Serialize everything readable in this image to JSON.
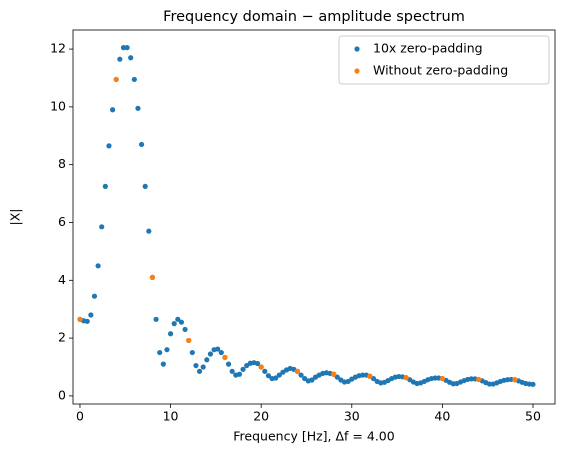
{
  "chart_data": {
    "type": "scatter",
    "title": "Frequency domain − amplitude spectrum",
    "xlabel": "Frequency [Hz], Δf = 4.00",
    "ylabel": "|X|",
    "xlim": [
      -0.77,
      52.43
    ],
    "ylim": [
      -0.28,
      12.66
    ],
    "xticks": [
      0,
      10,
      20,
      30,
      40,
      50
    ],
    "yticks": [
      0,
      2,
      4,
      6,
      8,
      10,
      12
    ],
    "legend": "upper right",
    "series": [
      {
        "name": "10x zero-padding",
        "color": "#1f77b4",
        "x": [
          0,
          0.4,
          0.8,
          1.2,
          1.6,
          2,
          2.4,
          2.8,
          3.2,
          3.6,
          4,
          4.4,
          4.8,
          5.2,
          5.6,
          6,
          6.4,
          6.8,
          7.2,
          7.6,
          8,
          8.4,
          8.8,
          9.2,
          9.6,
          10,
          10.4,
          10.8,
          11.2,
          11.6,
          12,
          12.4,
          12.8,
          13.2,
          13.6,
          14,
          14.4,
          14.8,
          15.2,
          15.6,
          16,
          16.4,
          16.8,
          17.2,
          17.6,
          18,
          18.4,
          18.8,
          19.2,
          19.6,
          20,
          20.4,
          20.8,
          21.2,
          21.6,
          22,
          22.4,
          22.8,
          23.2,
          23.6,
          24,
          24.4,
          24.8,
          25.2,
          25.6,
          26,
          26.4,
          26.8,
          27.2,
          27.6,
          28,
          28.4,
          28.8,
          29.2,
          29.6,
          30,
          30.4,
          30.8,
          31.2,
          31.6,
          32,
          32.4,
          32.8,
          33.2,
          33.6,
          34,
          34.4,
          34.8,
          35.2,
          35.6,
          36,
          36.4,
          36.8,
          37.2,
          37.6,
          38,
          38.4,
          38.8,
          39.2,
          39.6,
          40,
          40.4,
          40.8,
          41.2,
          41.6,
          42,
          42.4,
          42.8,
          43.2,
          43.6,
          44,
          44.4,
          44.8,
          45.2,
          45.6,
          46,
          46.4,
          46.8,
          47.2,
          47.6,
          48,
          48.4,
          48.8,
          49.2,
          49.6,
          50
        ],
        "values": [
          2.65,
          2.6,
          2.58,
          2.8,
          3.45,
          4.5,
          5.85,
          7.25,
          8.65,
          9.9,
          10.95,
          11.65,
          12.05,
          12.05,
          11.7,
          10.95,
          9.95,
          8.7,
          7.25,
          5.7,
          4.1,
          2.65,
          1.5,
          1.1,
          1.6,
          2.15,
          2.5,
          2.65,
          2.55,
          2.3,
          1.92,
          1.5,
          1.05,
          0.85,
          1.0,
          1.25,
          1.45,
          1.6,
          1.62,
          1.5,
          1.33,
          1.1,
          0.85,
          0.72,
          0.75,
          0.92,
          1.05,
          1.13,
          1.15,
          1.12,
          1.0,
          0.85,
          0.7,
          0.6,
          0.62,
          0.72,
          0.82,
          0.9,
          0.95,
          0.92,
          0.85,
          0.72,
          0.6,
          0.52,
          0.55,
          0.65,
          0.72,
          0.78,
          0.8,
          0.78,
          0.75,
          0.65,
          0.55,
          0.48,
          0.5,
          0.58,
          0.65,
          0.7,
          0.72,
          0.72,
          0.68,
          0.6,
          0.5,
          0.45,
          0.47,
          0.53,
          0.6,
          0.65,
          0.67,
          0.66,
          0.63,
          0.56,
          0.48,
          0.43,
          0.45,
          0.5,
          0.56,
          0.6,
          0.62,
          0.62,
          0.6,
          0.54,
          0.47,
          0.42,
          0.43,
          0.48,
          0.53,
          0.57,
          0.59,
          0.59,
          0.57,
          0.52,
          0.46,
          0.41,
          0.41,
          0.45,
          0.5,
          0.54,
          0.56,
          0.57,
          0.56,
          0.52,
          0.47,
          0.43,
          0.41,
          0.4
        ]
      },
      {
        "name": "Without zero-padding",
        "color": "#ff7f0e",
        "x": [
          0,
          4,
          8,
          12,
          16,
          20,
          24,
          28,
          32,
          36,
          40,
          44,
          48
        ],
        "values": [
          2.65,
          10.95,
          4.1,
          1.92,
          1.33,
          1.0,
          0.85,
          0.75,
          0.68,
          0.63,
          0.6,
          0.57,
          0.56
        ]
      }
    ]
  }
}
